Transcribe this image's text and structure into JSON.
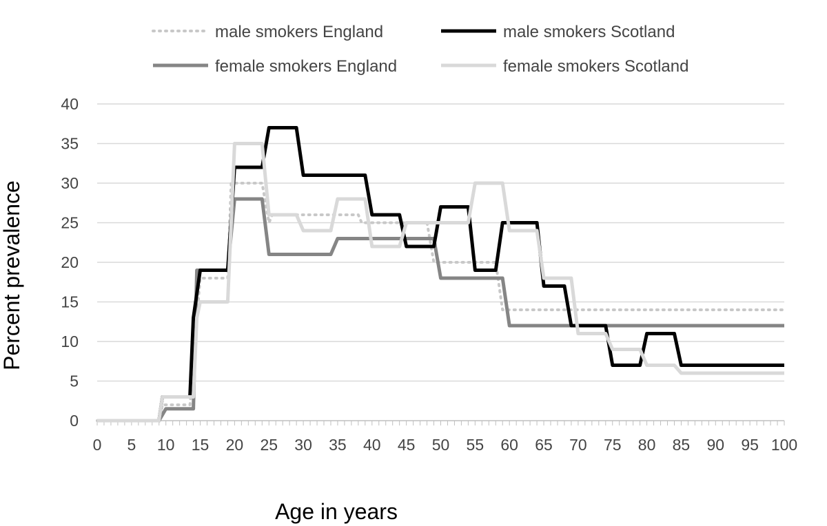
{
  "chart_data": {
    "type": "line",
    "title": "",
    "xlabel": "Age in years",
    "ylabel": "Percent prevalence",
    "xlim": [
      0,
      100
    ],
    "ylim": [
      0,
      40
    ],
    "x_ticks": [
      "0",
      "5",
      "10",
      "15",
      "20",
      "25",
      "30",
      "35",
      "40",
      "45",
      "50",
      "55",
      "60",
      "65",
      "70",
      "75",
      "80",
      "85",
      "90",
      "95",
      "100"
    ],
    "y_ticks": [
      "0",
      "5",
      "10",
      "15",
      "20",
      "25",
      "30",
      "35",
      "40"
    ],
    "grid": "horizontal",
    "legend_position": "top",
    "series": [
      {
        "name": "male smokers England",
        "color": "#c8c8c8",
        "style": "dotted",
        "x": [
          0,
          9,
          9.5,
          10,
          13.5,
          14.5,
          15,
          19,
          19.5,
          20,
          24,
          25,
          25.5,
          30,
          30.5,
          38,
          38.5,
          48,
          49,
          58,
          59,
          60,
          100
        ],
        "y": [
          0,
          0,
          2,
          2,
          2,
          13,
          18,
          18,
          30,
          30,
          30,
          25,
          26,
          26,
          26,
          26,
          25,
          25,
          20,
          20,
          14,
          14,
          14
        ]
      },
      {
        "name": "male smokers Scotland",
        "color": "#000000",
        "style": "solid",
        "x": [
          0,
          9,
          9.5,
          13.5,
          14,
          15,
          19,
          20,
          24,
          25,
          29,
          30,
          39,
          40,
          44,
          45,
          49,
          50,
          54,
          55,
          58,
          59,
          64,
          65,
          68,
          69,
          74,
          75,
          79,
          80,
          84,
          85,
          100
        ],
        "y": [
          0,
          0,
          3,
          3,
          13,
          19,
          19,
          32,
          32,
          37,
          37,
          31,
          31,
          26,
          26,
          22,
          22,
          27,
          27,
          19,
          19,
          25,
          25,
          17,
          17,
          12,
          12,
          7,
          7,
          11,
          11,
          7,
          7
        ]
      },
      {
        "name": "female smokers England",
        "color": "#858585",
        "style": "solid",
        "x": [
          0,
          9,
          10,
          14,
          14.5,
          19,
          20,
          24,
          25,
          34,
          35,
          49,
          50,
          59,
          60,
          100
        ],
        "y": [
          0,
          0,
          1.5,
          1.5,
          19,
          19,
          28,
          28,
          21,
          21,
          23,
          23,
          18,
          18,
          12,
          12
        ]
      },
      {
        "name": "female smokers Scotland",
        "color": "#d9d9d9",
        "style": "solid",
        "x": [
          0,
          9,
          9.5,
          14,
          14.5,
          15,
          19,
          20,
          24,
          25,
          29,
          30,
          34,
          35,
          39,
          40,
          44,
          45,
          54,
          55,
          59,
          60,
          64,
          65,
          69,
          70,
          74,
          75,
          79,
          80,
          84,
          85,
          100
        ],
        "y": [
          0,
          0,
          3,
          3,
          13,
          15,
          15,
          35,
          35,
          26,
          26,
          24,
          24,
          28,
          28,
          22,
          22,
          25,
          25,
          30,
          30,
          24,
          24,
          18,
          18,
          11,
          11,
          9,
          9,
          7,
          7,
          6,
          6
        ]
      }
    ]
  }
}
